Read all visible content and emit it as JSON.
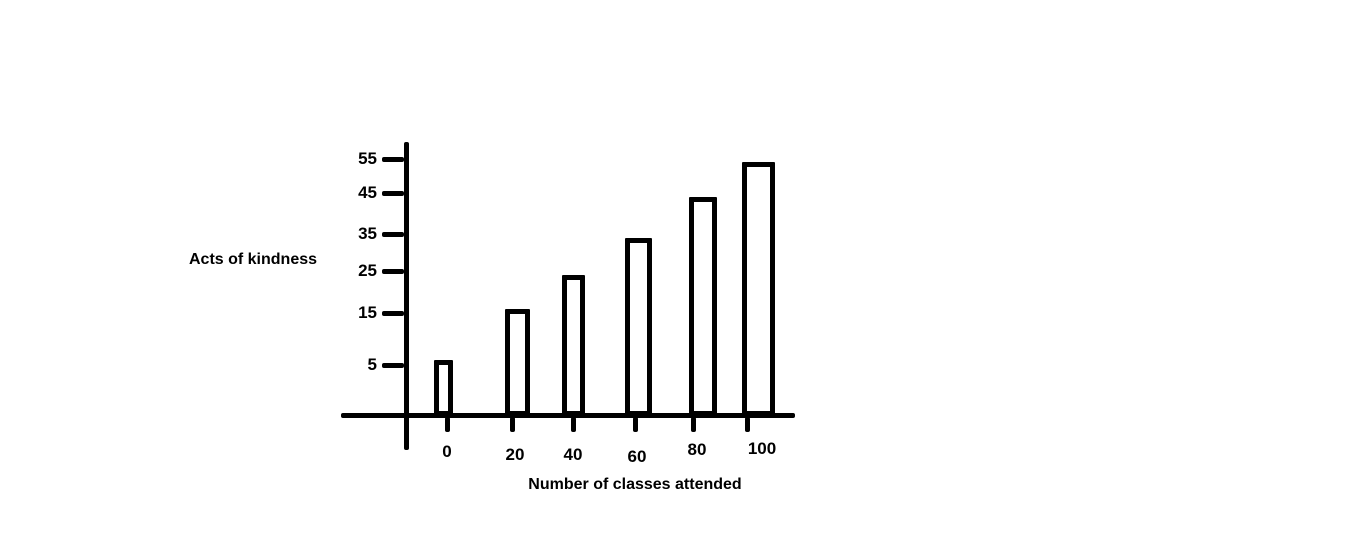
{
  "page": {
    "background_color": "#ffffff",
    "ink_color": "#000000"
  },
  "chart_data": {
    "type": "bar",
    "title": "",
    "xlabel": "Number of classes attended",
    "ylabel": "Acts of kindness",
    "categories": [
      "0",
      "20",
      "40",
      "60",
      "80",
      "100"
    ],
    "values": [
      6,
      16,
      24,
      34,
      44,
      54
    ],
    "y_ticks": [
      5,
      15,
      25,
      35,
      45,
      55
    ],
    "ylim": [
      0,
      60
    ],
    "grid": false,
    "legend": false,
    "bar_fill": "#ffffff",
    "bar_border": "#000000",
    "axis_color": "#000000",
    "style_note": "hand-drawn thick black marker sketch on white background"
  }
}
